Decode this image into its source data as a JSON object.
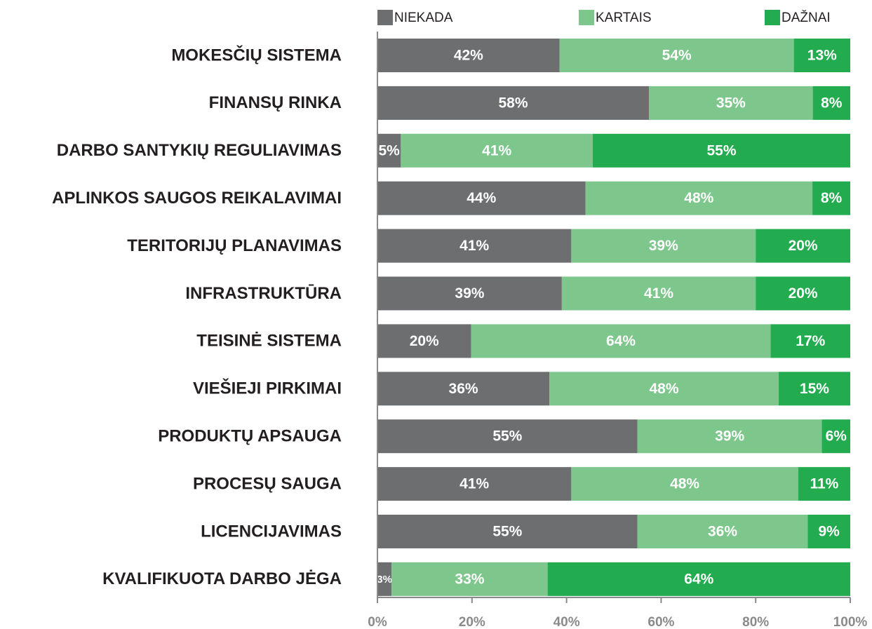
{
  "chart_data": {
    "type": "bar",
    "orientation": "horizontal",
    "stacking": "percent",
    "categories": [
      "MOKESČIŲ SISTEMA",
      "FINANSŲ RINKA",
      "DARBO SANTYKIŲ REGULIAVIMAS",
      "APLINKOS SAUGOS REIKALAVIMAI",
      "TERITORIJŲ PLANAVIMAS",
      "INFRASTRUKTŪRA",
      "TEISINĖ SISTEMA",
      "VIEŠIEJI PIRKIMAI",
      "PRODUKTŲ APSAUGA",
      "PROCESŲ SAUGA",
      "LICENCIJAVIMAS",
      "KVALIFIKUOTA DARBO JĖGA"
    ],
    "series": [
      {
        "name": "NIEKADA",
        "color": "#6d6e70",
        "values": [
          42,
          58,
          5,
          44,
          41,
          39,
          20,
          36,
          55,
          41,
          55,
          3
        ],
        "value_labels": [
          "42%",
          "58%",
          "5%",
          "44%",
          "41%",
          "39%",
          "20%",
          "36%",
          "55%",
          "41%",
          "55%",
          "3%"
        ]
      },
      {
        "name": "KARTAIS",
        "color": "#7dc68c",
        "values": [
          54,
          35,
          41,
          48,
          39,
          41,
          64,
          48,
          39,
          48,
          36,
          33
        ],
        "value_labels": [
          "54%",
          "35%",
          "41%",
          "48%",
          "39%",
          "41%",
          "64%",
          "48%",
          "39%",
          "48%",
          "36%",
          "33%"
        ]
      },
      {
        "name": "DAŽNAI",
        "color": "#22ab4f",
        "values": [
          13,
          8,
          55,
          8,
          20,
          20,
          17,
          15,
          6,
          11,
          9,
          64
        ],
        "value_labels": [
          "13%",
          "8%",
          "55%",
          "8%",
          "20%",
          "20%",
          "17%",
          "15%",
          "6%",
          "11%",
          "9%",
          "64%"
        ]
      }
    ],
    "xlim": [
      0,
      100
    ],
    "xticks": [
      {
        "value": 0,
        "label": "0%"
      },
      {
        "value": 20,
        "label": "20%"
      },
      {
        "value": 40,
        "label": "40%"
      },
      {
        "value": 60,
        "label": "60%"
      },
      {
        "value": 80,
        "label": "80%"
      },
      {
        "value": 100,
        "label": "100%"
      }
    ],
    "legend": "top"
  }
}
